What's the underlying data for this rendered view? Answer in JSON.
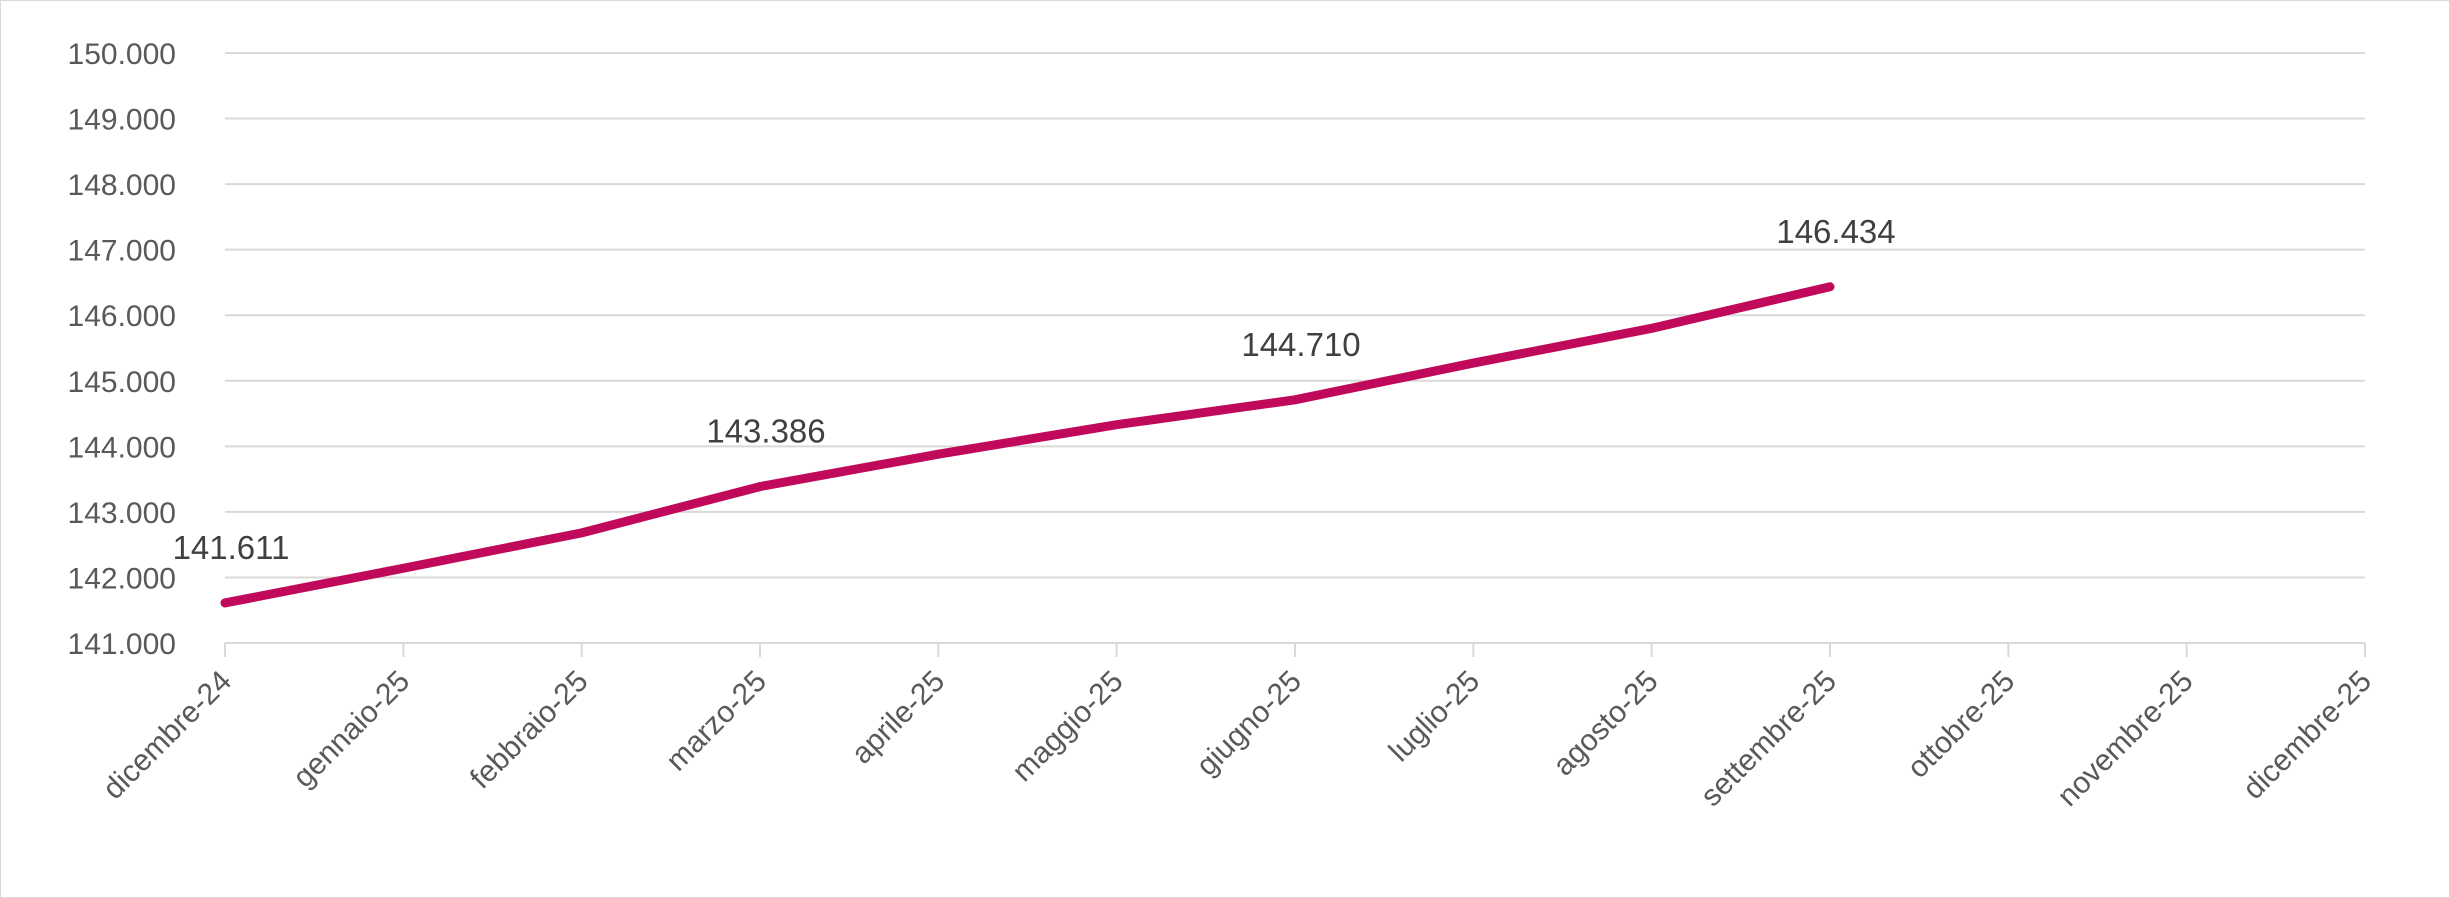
{
  "chart_data": {
    "type": "line",
    "title": "",
    "xlabel": "",
    "ylabel": "",
    "categories": [
      "dicembre-24",
      "gennaio-25",
      "febbraio-25",
      "marzo-25",
      "aprile-25",
      "maggio-25",
      "giugno-25",
      "luglio-25",
      "agosto-25",
      "settembre-25",
      "ottobre-25",
      "novembre-25",
      "dicembre-25"
    ],
    "ylim": [
      141000,
      150000
    ],
    "yticks": [
      141000,
      142000,
      143000,
      144000,
      145000,
      146000,
      147000,
      148000,
      149000,
      150000
    ],
    "ytick_labels": [
      "141.000",
      "142.000",
      "143.000",
      "144.000",
      "145.000",
      "146.000",
      "147.000",
      "148.000",
      "149.000",
      "150.000"
    ],
    "grid": true,
    "legend": "none",
    "series": [
      {
        "color": "#c0095b",
        "values": [
          141611,
          142140,
          142680,
          143386,
          143880,
          144330,
          144710,
          145270,
          145800,
          146434,
          null,
          null,
          null
        ]
      }
    ],
    "data_labels": [
      {
        "index": 0,
        "text": "141.611"
      },
      {
        "index": 3,
        "text": "143.386"
      },
      {
        "index": 6,
        "text": "144.710"
      },
      {
        "index": 9,
        "text": "146.434"
      }
    ]
  }
}
